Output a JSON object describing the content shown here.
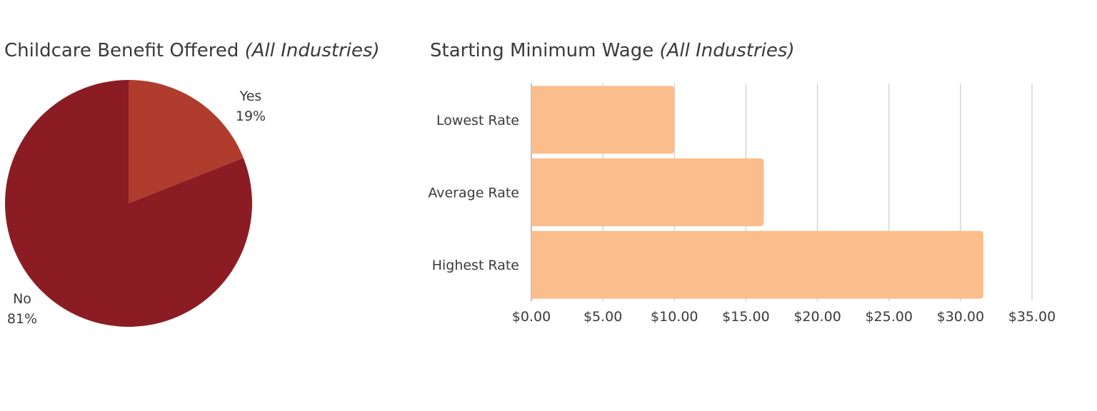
{
  "chart_data": [
    {
      "type": "pie",
      "title": "Childcare Benefit Offered",
      "subtitle": "(All Industries)",
      "slices": [
        {
          "label": "Yes",
          "value": 19,
          "display": "19%",
          "color": "#b03c2e"
        },
        {
          "label": "No",
          "value": 81,
          "display": "81%",
          "color": "#8b1c24"
        }
      ]
    },
    {
      "type": "bar",
      "orientation": "horizontal",
      "title": "Starting Minimum Wage",
      "subtitle": "(All Industries)",
      "categories": [
        "Lowest Rate",
        "Average Rate",
        "Highest Rate"
      ],
      "values": [
        10.0,
        16.25,
        31.6
      ],
      "bar_color": "#fbbd8b",
      "xlim": [
        0,
        35
      ],
      "xticks": [
        0,
        5,
        10,
        15,
        20,
        25,
        30,
        35
      ],
      "xtick_labels": [
        "$0.00",
        "$5.00",
        "$10.00",
        "$15.00",
        "$20.00",
        "$25.00",
        "$30.00",
        "$35.00"
      ],
      "grid": true,
      "xlabel": "",
      "ylabel": ""
    }
  ]
}
